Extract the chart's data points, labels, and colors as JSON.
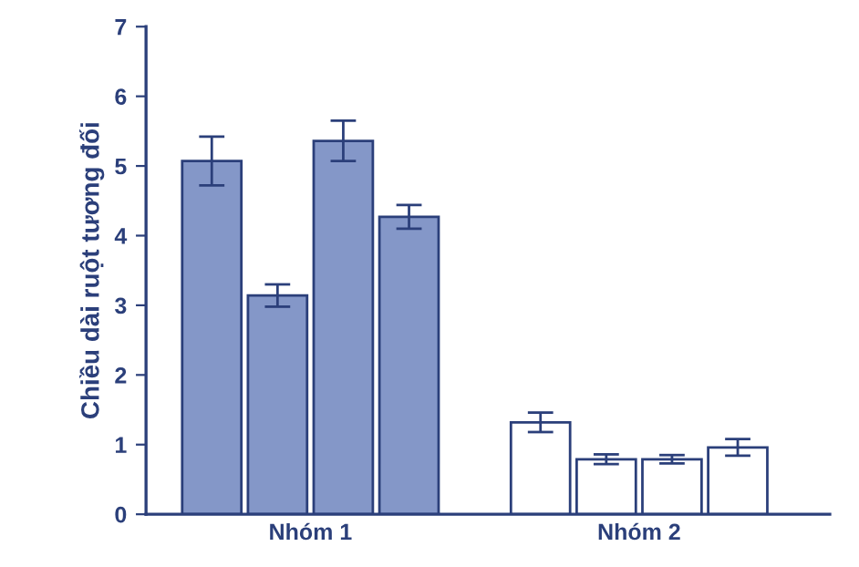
{
  "chart_data": {
    "type": "bar",
    "ylabel": "Chiều dài ruột tương đối",
    "categories": [
      "Nhóm 1",
      "Nhóm 2"
    ],
    "series": [
      {
        "colors": [
          "#8497c8",
          "#ffffff"
        ],
        "values": [
          5.07,
          1.32
        ],
        "errors": [
          0.35,
          0.14
        ]
      },
      {
        "colors": [
          "#8497c8",
          "#ffffff"
        ],
        "values": [
          3.14,
          0.79
        ],
        "errors": [
          0.16,
          0.07
        ]
      },
      {
        "colors": [
          "#8497c8",
          "#ffffff"
        ],
        "values": [
          5.36,
          0.79
        ],
        "errors": [
          0.29,
          0.06
        ]
      },
      {
        "colors": [
          "#8497c8",
          "#ffffff"
        ],
        "values": [
          4.27,
          0.96
        ],
        "errors": [
          0.17,
          0.12
        ]
      }
    ],
    "ylim": [
      0,
      7
    ],
    "yticks": [
      0,
      1,
      2,
      3,
      4,
      5,
      6,
      7
    ],
    "grid": false
  }
}
